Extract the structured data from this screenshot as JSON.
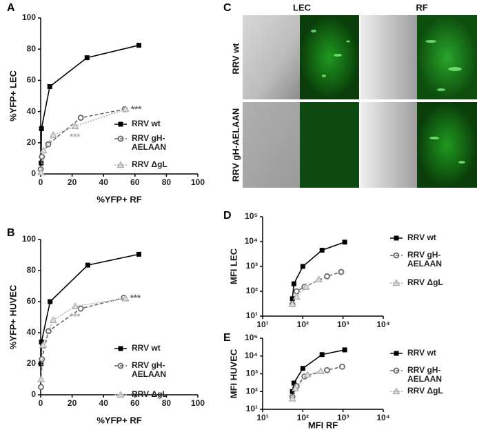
{
  "chart_data": [
    {
      "type": "scatter",
      "panel": "A",
      "x_label": "%YFP+ RF",
      "y_label": "%YFP+ LEC",
      "xlim": [
        0,
        100
      ],
      "xticks": [
        0,
        20,
        40,
        60,
        80,
        100
      ],
      "ylim": [
        0,
        100
      ],
      "yticks": [
        0,
        20,
        40,
        60,
        80,
        100
      ],
      "log": false,
      "series": [
        {
          "name": "RRV wt",
          "color": "#000000",
          "marker": "square",
          "line_style": "solid",
          "x": [
            0.3,
            0.5,
            5.8,
            29.5,
            62.5
          ],
          "values": [
            7,
            29,
            56,
            74.5,
            82.5
          ]
        },
        {
          "name": "RRV gH-AELAAN",
          "color": "#666666",
          "marker": "circle",
          "line_style": "dashed",
          "x": [
            0,
            0.8,
            4.8,
            25.5,
            53.5
          ],
          "values": [
            3,
            11,
            19,
            36,
            41.5
          ]
        },
        {
          "name": "RRV ΔgL",
          "color": "#aaaaaa",
          "marker": "triangle",
          "line_style": "dotted",
          "x": [
            0.3,
            1.8,
            8,
            22,
            54
          ],
          "values": [
            1,
            15,
            25,
            30.5,
            41.5
          ]
        }
      ],
      "annotations": [
        {
          "text": "***",
          "color": "#666666"
        },
        {
          "text": "***",
          "color": "#aaaaaa"
        }
      ]
    },
    {
      "type": "scatter",
      "panel": "B",
      "x_label": "%YFP+ RF",
      "y_label": "%YFP+ HUVEC",
      "xlim": [
        0,
        100
      ],
      "xticks": [
        0,
        20,
        40,
        60,
        80,
        100
      ],
      "ylim": [
        0,
        100
      ],
      "yticks": [
        0,
        20,
        40,
        60,
        80,
        100
      ],
      "log": false,
      "series": [
        {
          "name": "RRV wt",
          "color": "#000000",
          "marker": "square",
          "line_style": "solid",
          "x": [
            0.2,
            0.5,
            6,
            30,
            62.5
          ],
          "values": [
            20,
            34,
            60,
            83.5,
            90.5
          ]
        },
        {
          "name": "RRV gH-AELAAN",
          "color": "#666666",
          "marker": "circle",
          "line_style": "dashed",
          "x": [
            0.2,
            0.8,
            5,
            25.5,
            53
          ],
          "values": [
            5,
            23,
            41,
            55.5,
            62.5
          ]
        },
        {
          "name": "RRV ΔgL",
          "color": "#aaaaaa",
          "marker": "triangle",
          "line_style": "dotted",
          "x": [
            0.3,
            1.5,
            8,
            22,
            54
          ],
          "values": [
            10,
            32,
            48,
            57,
            62
          ]
        }
      ],
      "annotations": [
        {
          "text": "***",
          "color": "#666666"
        },
        {
          "text": "***",
          "color": "#aaaaaa"
        }
      ]
    },
    {
      "type": "scatter",
      "panel": "D",
      "y_label": "MFI LEC",
      "xlim": [
        10,
        10000
      ],
      "xticks": [
        {
          "value": 10,
          "label": "10¹"
        },
        {
          "value": 100,
          "label": "10²"
        },
        {
          "value": 1000,
          "label": "10³"
        },
        {
          "value": 10000,
          "label": "10⁴"
        }
      ],
      "ylim": [
        10,
        100000
      ],
      "yticks": [
        {
          "value": 10,
          "label": "10¹"
        },
        {
          "value": 100,
          "label": "10²"
        },
        {
          "value": 1000,
          "label": "10³"
        },
        {
          "value": 10000,
          "label": "10⁴"
        },
        {
          "value": 100000,
          "label": "10⁵"
        }
      ],
      "log": true,
      "series": [
        {
          "name": "RRV wt",
          "color": "#000000",
          "marker": "square",
          "line_style": "solid",
          "x": [
            55,
            60,
            100,
            300,
            1100
          ],
          "values": [
            50,
            200,
            1000,
            4500,
            9500
          ]
        },
        {
          "name": "RRV gH-AELAAN",
          "color": "#666666",
          "marker": "circle",
          "line_style": "dashed",
          "x": [
            55,
            70,
            110,
            400,
            900
          ],
          "values": [
            30,
            100,
            150,
            400,
            600
          ]
        },
        {
          "name": "RRV ΔgL",
          "color": "#aaaaaa",
          "marker": "triangle",
          "line_style": "dotted",
          "x": [
            55,
            70,
            120,
            250
          ],
          "values": [
            30,
            60,
            150,
            300
          ]
        }
      ]
    },
    {
      "type": "scatter",
      "panel": "E",
      "x_label": "MFI RF",
      "y_label": "MFI HUVEC",
      "xlim": [
        10,
        10000
      ],
      "xticks": [
        {
          "value": 10,
          "label": "10¹"
        },
        {
          "value": 100,
          "label": "10²"
        },
        {
          "value": 1000,
          "label": "10³"
        },
        {
          "value": 10000,
          "label": "10⁴"
        }
      ],
      "ylim": [
        10,
        100000
      ],
      "yticks": [
        {
          "value": 10,
          "label": "10¹"
        },
        {
          "value": 100,
          "label": "10²"
        },
        {
          "value": 1000,
          "label": "10³"
        },
        {
          "value": 10000,
          "label": "10⁴"
        },
        {
          "value": 100000,
          "label": "10⁵"
        }
      ],
      "log": true,
      "series": [
        {
          "name": "RRV wt",
          "color": "#000000",
          "marker": "square",
          "line_style": "solid",
          "x": [
            55,
            60,
            100,
            300,
            1100
          ],
          "values": [
            100,
            300,
            2000,
            12000,
            22000
          ]
        },
        {
          "name": "RRV gH-AELAAN",
          "color": "#666666",
          "marker": "circle",
          "line_style": "dashed",
          "x": [
            55,
            70,
            110,
            400,
            950
          ],
          "values": [
            50,
            200,
            700,
            1600,
            2500
          ]
        },
        {
          "name": "RRV ΔgL",
          "color": "#aaaaaa",
          "marker": "triangle",
          "line_style": "dotted",
          "x": [
            55,
            65,
            130,
            280
          ],
          "values": [
            40,
            150,
            900,
            1400
          ]
        }
      ]
    }
  ],
  "panel_c": {
    "panel": "C",
    "columns": [
      "LEC",
      "RF"
    ],
    "rows": [
      "RRV wt",
      "RRV gH-AELAAN"
    ]
  }
}
